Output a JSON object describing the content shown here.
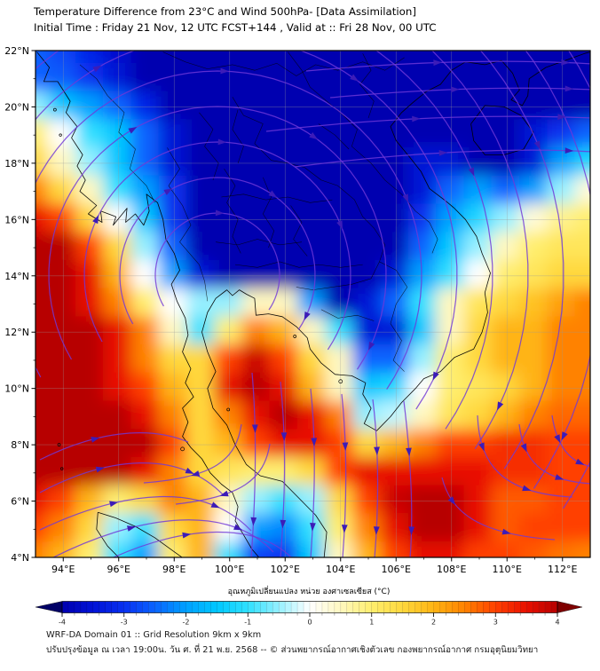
{
  "header": {
    "title": "Temperature Difference from 23°C and Wind 500hPa- [Data Assimilation]",
    "subtitle": "Initial Time : Friday 21 Nov, 12 UTC FCST+144 , Valid at ::  Fri 28 Nov, 00 UTC"
  },
  "footer": {
    "line1": "WRF-DA Domain 01 :: Grid Resolution 9km x 9km",
    "line2": "ปรับปรุงข้อมูล ณ เวลา 19:00น. วัน ศ. ที่ 21 พ.ย. 2568 -- © ส่วนพยากรณ์อากาศเชิงตัวเลข กองพยากรณ์อากาศ กรมอุตุนิยมวิทยา"
  },
  "chart_data": {
    "type": "heatmap",
    "title": "Temperature Difference from 23°C and Wind 500hPa- [Data Assimilation]",
    "xlabel": "longitude (°E)",
    "ylabel": "latitude (°N)",
    "lon_range": [
      93,
      113
    ],
    "lat_range": [
      4,
      22
    ],
    "x_axis": {
      "ticks": [
        {
          "v": 94,
          "label": "94°E"
        },
        {
          "v": 96,
          "label": "96°E"
        },
        {
          "v": 98,
          "label": "98°E"
        },
        {
          "v": 100,
          "label": "100°E"
        },
        {
          "v": 102,
          "label": "102°E"
        },
        {
          "v": 104,
          "label": "104°E"
        },
        {
          "v": 106,
          "label": "106°E"
        },
        {
          "v": 108,
          "label": "108°E"
        },
        {
          "v": 110,
          "label": "110°E"
        },
        {
          "v": 112,
          "label": "112°E"
        }
      ]
    },
    "y_axis": {
      "ticks": [
        {
          "v": 22,
          "label": "22°N"
        },
        {
          "v": 20,
          "label": "20°N"
        },
        {
          "v": 18,
          "label": "18°N"
        },
        {
          "v": 16,
          "label": "16°N"
        },
        {
          "v": 14,
          "label": "14°N"
        },
        {
          "v": 12,
          "label": "12°N"
        },
        {
          "v": 10,
          "label": "10°N"
        },
        {
          "v": 8,
          "label": "8°N"
        },
        {
          "v": 6,
          "label": "6°N"
        },
        {
          "v": 4,
          "label": "4°N"
        }
      ]
    },
    "grid": {
      "lons": [
        93,
        94,
        95,
        96,
        97,
        98,
        99,
        100,
        101,
        102,
        103,
        104,
        105,
        106,
        107,
        108,
        109,
        110,
        111,
        112,
        113
      ],
      "lats": [
        22,
        21,
        20,
        19,
        18,
        17,
        16,
        15,
        14,
        13,
        12,
        11,
        10,
        9,
        8,
        7,
        6,
        5,
        4
      ],
      "values": [
        [
          -2.5,
          -2.8,
          -3.2,
          -3.6,
          -4,
          -4,
          -4,
          -4,
          -4,
          -4,
          -4,
          -4,
          -4,
          -4,
          -4,
          -4,
          -4,
          -4,
          -4,
          -4,
          -4
        ],
        [
          -2.5,
          -2.6,
          -3,
          -3.5,
          -4,
          -4,
          -4,
          -4,
          -4,
          -4,
          -4,
          -4,
          -4,
          -4,
          -4,
          -4,
          -4,
          -4,
          -4,
          -4,
          -4
        ],
        [
          -0.5,
          -1.5,
          -2,
          -2.5,
          -3.2,
          -4,
          -4,
          -4,
          -4,
          -4,
          -4,
          -4,
          -4,
          -4,
          -4,
          -4,
          -4,
          -4,
          -4,
          -4,
          -4
        ],
        [
          1,
          0,
          -1,
          -1.5,
          -2.5,
          -3.5,
          -4,
          -4,
          -4,
          -4,
          -4,
          -4,
          -4,
          -4,
          -4,
          -4,
          -4,
          -4,
          -3.5,
          -3,
          -2.5
        ],
        [
          1.5,
          0.5,
          -0.5,
          -1.5,
          -2.5,
          -3.5,
          -4,
          -4,
          -4,
          -4,
          -4,
          -4,
          -4,
          -4,
          -3.5,
          -3.5,
          -4,
          -4,
          -3.5,
          -2,
          -1.2
        ],
        [
          2.5,
          1.5,
          0.5,
          -1,
          -2,
          -3,
          -4,
          -4,
          -4,
          -4,
          -4,
          -4,
          -4,
          -4,
          -3.5,
          -2.5,
          -2,
          -2.5,
          -2,
          -0.5,
          0.3
        ],
        [
          3.5,
          3,
          1.5,
          0,
          -1.5,
          -3,
          -4,
          -4,
          -4,
          -4,
          -4,
          -4,
          -4,
          -4,
          -3,
          -2,
          -1.2,
          -0.5,
          0.3,
          0.8,
          1
        ],
        [
          4,
          4,
          3,
          1.5,
          -0.5,
          -2.5,
          -4,
          -4,
          -4,
          -4,
          -4,
          -4,
          -4,
          -4,
          -2.5,
          -1.5,
          -0.5,
          0.5,
          1,
          1.2,
          1.2
        ],
        [
          4,
          4,
          3.5,
          2,
          0,
          -2,
          -3.5,
          -4,
          -4,
          -4,
          -4,
          -4,
          -4,
          -3.5,
          -2,
          -1,
          0,
          1,
          1.2,
          1.5,
          1.5
        ],
        [
          4,
          4,
          3.5,
          2.5,
          1,
          0,
          -0.5,
          -0.5,
          0.5,
          0.5,
          -2,
          -4,
          -3.5,
          -2.5,
          -1,
          0.5,
          1.2,
          1.5,
          1.8,
          2.2,
          2.5
        ],
        [
          4,
          4,
          4,
          3.5,
          2.5,
          0.5,
          -1,
          1,
          2.5,
          2,
          0.5,
          -1,
          -3.5,
          -3.5,
          -1.5,
          0.5,
          1.5,
          2,
          2,
          2.5,
          2.5
        ],
        [
          4,
          4,
          4,
          3.5,
          2.5,
          1.5,
          1.5,
          3,
          3.8,
          3,
          1.5,
          0.5,
          -2.5,
          -2.5,
          -0.5,
          1,
          1.5,
          2,
          2,
          2.5,
          2.5
        ],
        [
          4,
          4,
          4,
          3.5,
          3,
          2,
          1.5,
          3.5,
          4,
          3.5,
          2,
          0.5,
          -1.5,
          -1.2,
          0,
          1,
          1.2,
          1.5,
          2,
          2.5,
          2.5
        ],
        [
          4,
          4,
          4,
          4,
          3.5,
          2.5,
          1.5,
          2.5,
          3.5,
          4,
          3.5,
          2.5,
          -0.5,
          -0.3,
          0.5,
          1.2,
          1.5,
          2,
          2.5,
          2.7,
          2.7
        ],
        [
          4,
          4,
          4,
          4,
          4,
          3,
          1.5,
          2,
          3,
          3.5,
          3.5,
          3,
          1.5,
          2,
          2.5,
          3,
          3,
          3.2,
          3.2,
          3,
          3
        ],
        [
          4,
          4,
          4,
          4,
          3.5,
          2.5,
          1.5,
          1.2,
          1,
          1,
          1.5,
          3,
          3.5,
          3.5,
          3.5,
          3.5,
          3.5,
          3.2,
          3.2,
          3,
          3
        ],
        [
          3.5,
          3,
          2,
          1,
          1.5,
          2.5,
          2,
          0.5,
          -0.5,
          -1,
          -0.5,
          1.5,
          3,
          3.8,
          4,
          4,
          3.5,
          2.8,
          2.8,
          3,
          3
        ],
        [
          3,
          2.5,
          1.5,
          -0.5,
          -1,
          1.5,
          2,
          0,
          -2,
          -2.2,
          -1,
          1,
          2.5,
          3.5,
          4,
          4,
          3.5,
          2.8,
          3,
          3,
          3
        ],
        [
          2.5,
          2,
          1,
          -1,
          -2,
          1,
          2,
          -1,
          -2.8,
          -3,
          -1.5,
          0.5,
          2,
          3,
          3.5,
          3.5,
          3,
          3,
          2.8,
          2.6,
          2.5
        ]
      ]
    },
    "palette": {
      "stops": [
        [
          -4,
          "#0000b0"
        ],
        [
          -3.5,
          "#0112d6"
        ],
        [
          -3,
          "#0830f0"
        ],
        [
          -2.5,
          "#0a64ff"
        ],
        [
          -2,
          "#00a0ff"
        ],
        [
          -1.5,
          "#00c8ff"
        ],
        [
          -1,
          "#30e0ff"
        ],
        [
          -0.5,
          "#96f0ff"
        ],
        [
          0,
          "#ffffff"
        ],
        [
          0.5,
          "#fff8c0"
        ],
        [
          1,
          "#ffee6e"
        ],
        [
          1.5,
          "#ffd83c"
        ],
        [
          2,
          "#ffb414"
        ],
        [
          2.5,
          "#ff8200"
        ],
        [
          3,
          "#ff4000"
        ],
        [
          3.5,
          "#e81000"
        ],
        [
          4,
          "#b70000"
        ]
      ],
      "under": "#000066",
      "over": "#7f0000"
    },
    "colorbar": {
      "label": "อุณหภูมิเปลี่ยนแปลง หน่วย องศาเซลเซียส (°C)",
      "ticks": [
        {
          "v": -4,
          "label": "-4"
        },
        {
          "v": -3,
          "label": "-3"
        },
        {
          "v": -2,
          "label": "-2"
        },
        {
          "v": -1,
          "label": "-1"
        },
        {
          "v": 0,
          "label": "0"
        },
        {
          "v": 1,
          "label": "1"
        },
        {
          "v": 2,
          "label": "2"
        },
        {
          "v": 3,
          "label": "3"
        },
        {
          "v": 4,
          "label": "4"
        }
      ],
      "range": [
        -4,
        4
      ]
    },
    "wind": {
      "level": "500hPa",
      "line_color": "#7038d8",
      "arrow_color": "#3c1cb8"
    },
    "map_frame_color": "#000000",
    "grid_line_color": "#999999"
  }
}
